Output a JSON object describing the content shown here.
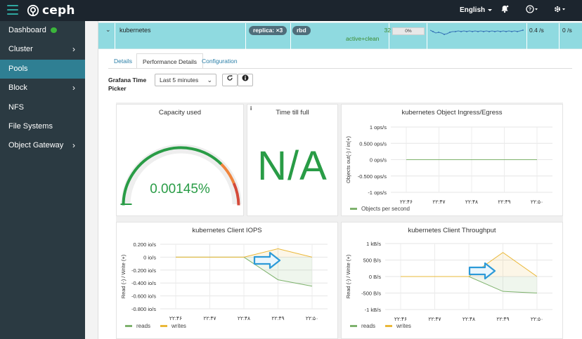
{
  "topbar": {
    "brand": "ceph",
    "language": "English",
    "icons": [
      "menu-icon",
      "bell-icon",
      "help-icon",
      "gear-icon"
    ]
  },
  "sidebar": {
    "items": [
      {
        "label": "Dashboard",
        "active": false,
        "chevron": false,
        "status_dot": true
      },
      {
        "label": "Cluster",
        "active": false,
        "chevron": true
      },
      {
        "label": "Pools",
        "active": true,
        "chevron": false
      },
      {
        "label": "Block",
        "active": false,
        "chevron": true
      },
      {
        "label": "NFS",
        "active": false,
        "chevron": false
      },
      {
        "label": "File Systems",
        "active": false,
        "chevron": false
      },
      {
        "label": "Object Gateway",
        "active": false,
        "chevron": true
      }
    ]
  },
  "pool": {
    "name": "kubernetes",
    "replica_badge": "replica: ×3",
    "app_badge": "rbd",
    "pg_count": "32",
    "pg_status": "active+clean",
    "usage": "0%",
    "read_bytes": "0.4 /s",
    "write_bytes": "0 /s"
  },
  "tabs": [
    {
      "label": "Details",
      "active": false
    },
    {
      "label": "Performance Details",
      "active": true
    },
    {
      "label": "Configuration",
      "active": false
    }
  ],
  "time_picker": {
    "label": "Grafana Time Picker",
    "value": "Last 5 minutes"
  },
  "panels": {
    "capacity": {
      "title": "Capacity used",
      "value": "0.00145%",
      "fraction": 1.45e-05
    },
    "time_till_full": {
      "title": "Time till full",
      "value": "N/A"
    },
    "ingress": {
      "title": "kubernetes Object Ingress/Egress",
      "ylabel": "Objects out(-) / in(+)",
      "yticks": [
        "1 ops/s",
        "0.500 ops/s",
        "0 ops/s",
        "-0.500 ops/s",
        "-1 ops/s"
      ],
      "xticks": [
        "۲۲:۴۶",
        "۲۲:۴۷",
        "۲۲:۴۸",
        "۲۲:۴۹",
        "۲۲:۵۰"
      ],
      "legend": [
        "Objects per second"
      ]
    },
    "iops": {
      "title": "kubernetes Client IOPS",
      "ylabel": "Read (-) / Write (+)",
      "yticks": [
        "0.200 io/s",
        "0 io/s",
        "-0.200 io/s",
        "-0.400 io/s",
        "-0.600 io/s",
        "-0.800 io/s"
      ],
      "xticks": [
        "۲۲:۴۶",
        "۲۲:۴۷",
        "۲۲:۴۸",
        "۲۲:۴۹",
        "۲۲:۵۰"
      ],
      "legend": [
        "reads",
        "writes"
      ]
    },
    "throughput": {
      "title": "kubernetes Client Throughput",
      "ylabel": "Read (-) / Write (+)",
      "yticks": [
        "1 kB/s",
        "500 B/s",
        "0 B/s",
        "-500 B/s",
        "-1 kB/s"
      ],
      "xticks": [
        "۲۲:۴۶",
        "۲۲:۴۷",
        "۲۲:۴۸",
        "۲۲:۴۹",
        "۲۲:۵۰"
      ],
      "legend": [
        "reads",
        "writes"
      ]
    }
  },
  "colors": {
    "green": "#299c46",
    "reads": "#7eb26d",
    "writes": "#eab839",
    "arrow": "#2c9ad8",
    "accent": "#2f7f93"
  },
  "chart_data": [
    {
      "type": "line",
      "title": "kubernetes Object Ingress/Egress",
      "ylabel": "Objects out(-) / in(+)",
      "x": [
        "۲۲:۴۶",
        "۲۲:۴۷",
        "۲۲:۴۸",
        "۲۲:۴۹",
        "۲۲:۵۰"
      ],
      "ylim": [
        -1,
        1
      ],
      "series": [
        {
          "name": "Objects per second",
          "values": [
            0,
            0,
            0,
            0,
            0
          ]
        }
      ]
    },
    {
      "type": "area",
      "title": "kubernetes Client IOPS",
      "ylabel": "Read (-) / Write (+)",
      "x": [
        "۲۲:۴۶",
        "۲۲:۴۷",
        "۲۲:۴۸",
        "۲۲:۴۹",
        "۲۲:۵۰"
      ],
      "ylim": [
        -0.8,
        0.2
      ],
      "series": [
        {
          "name": "reads",
          "values": [
            0,
            0,
            0,
            -0.35,
            -0.45
          ]
        },
        {
          "name": "writes",
          "values": [
            0,
            0,
            0,
            0.13,
            0
          ]
        }
      ]
    },
    {
      "type": "area",
      "title": "kubernetes Client Throughput",
      "ylabel": "Read (-) / Write (+)",
      "x": [
        "۲۲:۴۶",
        "۲۲:۴۷",
        "۲۲:۴۸",
        "۲۲:۴۹",
        "۲۲:۵۰"
      ],
      "ylim": [
        -1000,
        1000
      ],
      "series": [
        {
          "name": "reads",
          "values": [
            0,
            0,
            0,
            -450,
            -500
          ]
        },
        {
          "name": "writes",
          "values": [
            0,
            0,
            0,
            730,
            0
          ]
        }
      ]
    }
  ]
}
